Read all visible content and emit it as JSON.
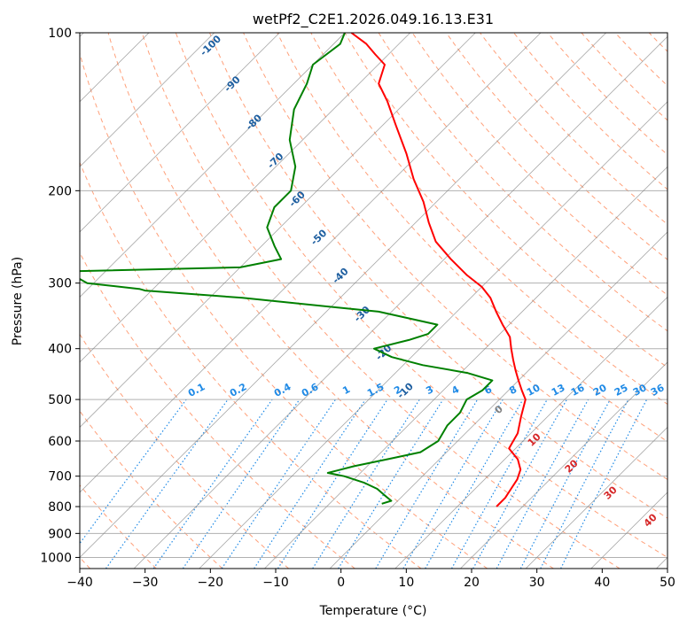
{
  "chart_data": {
    "type": "line",
    "title": "wetPf2_C2E1.2026.049.16.13.E31",
    "xlabel": "Temperature (°C)",
    "ylabel": "Pressure (hPa)",
    "xlim": [
      -40,
      50
    ],
    "ylim": [
      1050,
      100
    ],
    "y_scale": "log",
    "x_ticks": [
      "−40",
      "−30",
      "−20",
      "−10",
      "0",
      "10",
      "20",
      "30",
      "40",
      "50"
    ],
    "y_ticks": [
      "100",
      "200",
      "300",
      "400",
      "500",
      "600",
      "700",
      "800",
      "900",
      "1000"
    ],
    "y_tick_values": [
      100,
      200,
      300,
      400,
      500,
      600,
      700,
      800,
      900,
      1000
    ],
    "grid": true,
    "series": [
      {
        "color": "#ff0000",
        "p": [
          100,
          105,
          110,
          115,
          125,
          135,
          150,
          170,
          190,
          210,
          230,
          250,
          270,
          290,
          305,
          320,
          340,
          360,
          380,
          400,
          420,
          440,
          460,
          480,
          500,
          540,
          580,
          620,
          650,
          680,
          710,
          740,
          770,
          800
        ],
        "t": [
          -79,
          -75,
          -72,
          -69,
          -67,
          -63,
          -58,
          -52,
          -47,
          -42,
          -38,
          -34,
          -29,
          -24,
          -20,
          -17,
          -14,
          -11,
          -8,
          -6,
          -4,
          -2,
          0,
          2,
          4,
          6,
          8,
          9,
          12,
          14,
          15,
          15.5,
          16,
          16
        ]
      },
      {
        "color": "#008000",
        "p": [
          100,
          105,
          115,
          125,
          140,
          160,
          180,
          200,
          215,
          235,
          255,
          270,
          280,
          285,
          300,
          308,
          310,
          320,
          340,
          360,
          375,
          385,
          400,
          415,
          430,
          445,
          460,
          480,
          500,
          530,
          560,
          600,
          630,
          650,
          670,
          690,
          700,
          720,
          740,
          760,
          780,
          790
        ],
        "t": [
          -80,
          -79,
          -80,
          -78,
          -76,
          -72,
          -67,
          -64,
          -64,
          -62,
          -58,
          -55,
          -60,
          -86,
          -81,
          -72,
          -71,
          -55,
          -32,
          -21,
          -21,
          -23,
          -27,
          -23,
          -17,
          -9,
          -4,
          -4,
          -5,
          -4,
          -4,
          -3,
          -4,
          -8,
          -12,
          -15,
          -12,
          -8,
          -5,
          -3,
          -1,
          -2
        ]
      }
    ],
    "isotherm_labels": [
      "0",
      "10",
      "20",
      "30",
      "40"
    ],
    "dry_adiabat_labels": [
      "-100",
      "-90",
      "-80",
      "-70",
      "-60",
      "-50",
      "-40",
      "-30",
      "-20",
      "-10"
    ],
    "mixing_ratio_labels": [
      "0.1",
      "0.2",
      "0.4",
      "0.6",
      "1",
      "1.5",
      "2",
      "3",
      "4",
      "6",
      "8",
      "10",
      "13",
      "16",
      "20",
      "25",
      "30",
      "36"
    ],
    "mixing_ratio_values": [
      0.1,
      0.2,
      0.4,
      0.6,
      1,
      1.5,
      2,
      3,
      4,
      6,
      8,
      10,
      13,
      16,
      20,
      25,
      30,
      36
    ],
    "colors": {
      "temperature": "#ff0000",
      "dewpoint": "#008000",
      "isotherm": "#808080",
      "isotherm_label": "#d62728",
      "zero_label": "#808080",
      "dry_adiabat": "#ffa07a",
      "moist_adiabat": "#90c890",
      "mixing_ratio": "#1f8ae6",
      "dry_adiabat_label": "#1f5fa0",
      "frame": "#000000"
    }
  }
}
